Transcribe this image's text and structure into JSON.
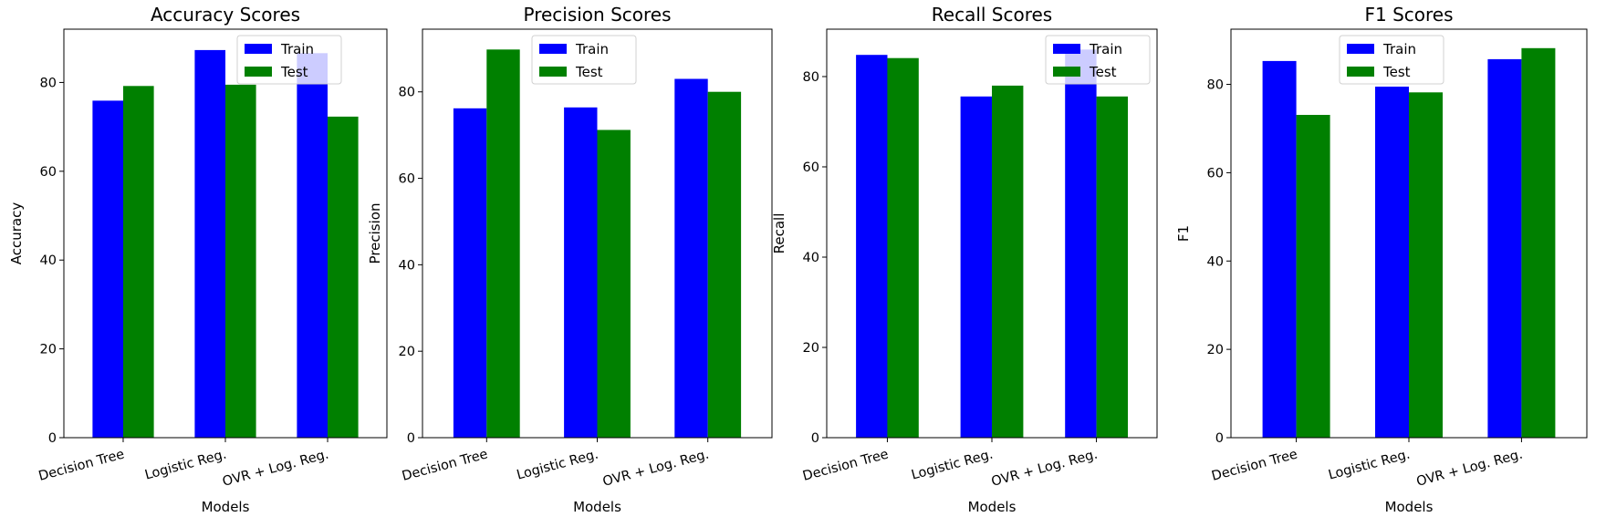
{
  "chart_data": [
    {
      "type": "bar",
      "title": "Accuracy Scores",
      "xlabel": "Models",
      "ylabel": "Accuracy",
      "categories": [
        "Decision Tree",
        "Logistic Reg.",
        "OVR + Log. Reg."
      ],
      "series": [
        {
          "name": "Train",
          "color": "#0000ff",
          "values": [
            75.9,
            87.3,
            86.6
          ]
        },
        {
          "name": "Test",
          "color": "#008000",
          "values": [
            79.2,
            79.5,
            72.3
          ]
        }
      ],
      "ylim": [
        0,
        92
      ],
      "yticks": [
        0,
        20,
        40,
        60,
        80
      ],
      "legend": "top-right",
      "grid": false
    },
    {
      "type": "bar",
      "title": "Precision Scores",
      "xlabel": "Models",
      "ylabel": "Precision",
      "categories": [
        "Decision Tree",
        "Logistic Reg.",
        "OVR + Log. Reg."
      ],
      "series": [
        {
          "name": "Train",
          "color": "#0000ff",
          "values": [
            76.2,
            76.4,
            83.0
          ]
        },
        {
          "name": "Test",
          "color": "#008000",
          "values": [
            89.8,
            71.2,
            80.0
          ]
        }
      ],
      "ylim": [
        0,
        94.5
      ],
      "yticks": [
        0,
        20,
        40,
        60,
        80
      ],
      "legend": "top-center",
      "grid": false
    },
    {
      "type": "bar",
      "title": "Recall Scores",
      "xlabel": "Models",
      "ylabel": "Recall",
      "categories": [
        "Decision Tree",
        "Logistic Reg.",
        "OVR + Log. Reg."
      ],
      "series": [
        {
          "name": "Train",
          "color": "#0000ff",
          "values": [
            84.8,
            75.6,
            86.0
          ]
        },
        {
          "name": "Test",
          "color": "#008000",
          "values": [
            84.1,
            78.0,
            75.6
          ]
        }
      ],
      "ylim": [
        0,
        90.5
      ],
      "yticks": [
        0,
        20,
        40,
        60,
        80
      ],
      "legend": "top-right",
      "grid": false
    },
    {
      "type": "bar",
      "title": "F1 Scores",
      "xlabel": "Models",
      "ylabel": "F1",
      "categories": [
        "Decision Tree",
        "Logistic Reg.",
        "OVR + Log. Reg."
      ],
      "series": [
        {
          "name": "Train",
          "color": "#0000ff",
          "values": [
            85.3,
            79.5,
            85.7
          ]
        },
        {
          "name": "Test",
          "color": "#008000",
          "values": [
            73.1,
            78.2,
            88.2
          ]
        }
      ],
      "ylim": [
        0,
        92.5
      ],
      "yticks": [
        0,
        20,
        40,
        60,
        80
      ],
      "legend": "top-center",
      "grid": false
    }
  ]
}
